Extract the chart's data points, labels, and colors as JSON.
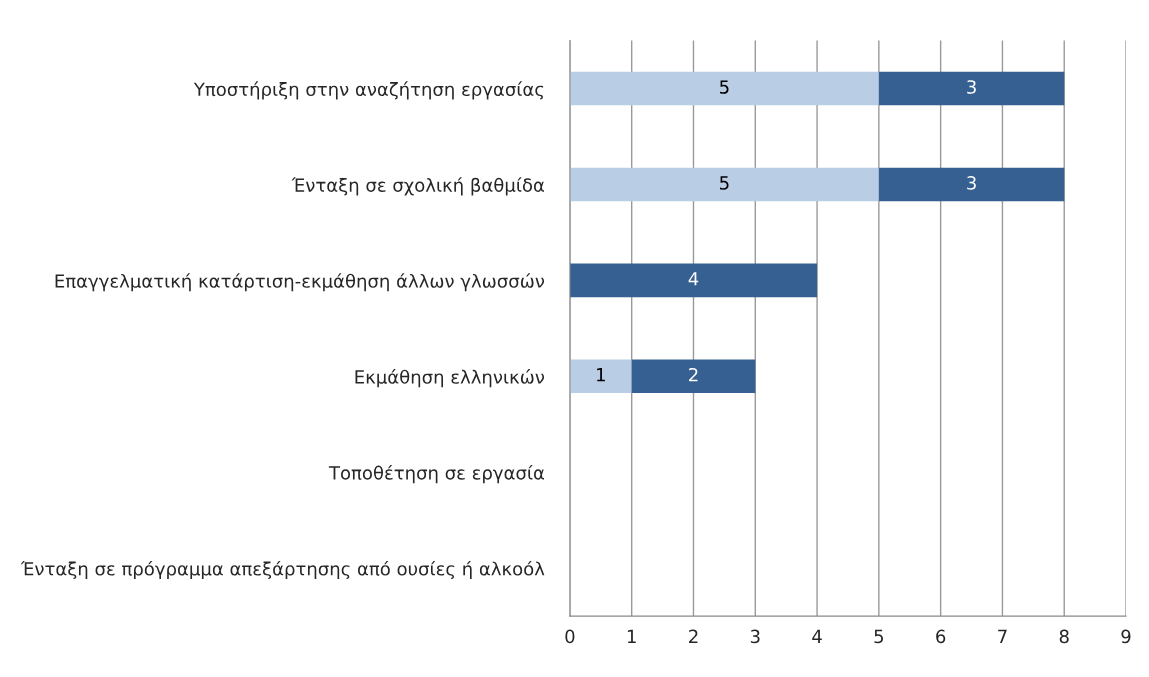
{
  "chart_data": {
    "type": "bar",
    "orientation": "horizontal",
    "stacked": true,
    "categories": [
      "Υποστήριξη στην αναζήτηση εργασίας",
      "Ένταξη σε σχολική βαθμίδα",
      "Επαγγελματική κατάρτιση-εκμάθηση άλλων γλωσσών",
      "Εκμάθηση ελληνικών",
      "Τοποθέτηση σε εργασία",
      "Ένταξη σε πρόγραμμα απεξάρτησης από ουσίες ή αλκοόλ"
    ],
    "series": [
      {
        "color": "#b9cde5",
        "values": [
          5,
          5,
          null,
          1,
          null,
          null
        ]
      },
      {
        "color": "#376092",
        "values": [
          3,
          3,
          4,
          2,
          null,
          null
        ]
      }
    ],
    "xlim": [
      0,
      9
    ],
    "xticks": [
      0,
      1,
      2,
      3,
      4,
      5,
      6,
      7,
      8,
      9
    ],
    "grid": "x",
    "data_labels": true,
    "legend": false
  }
}
